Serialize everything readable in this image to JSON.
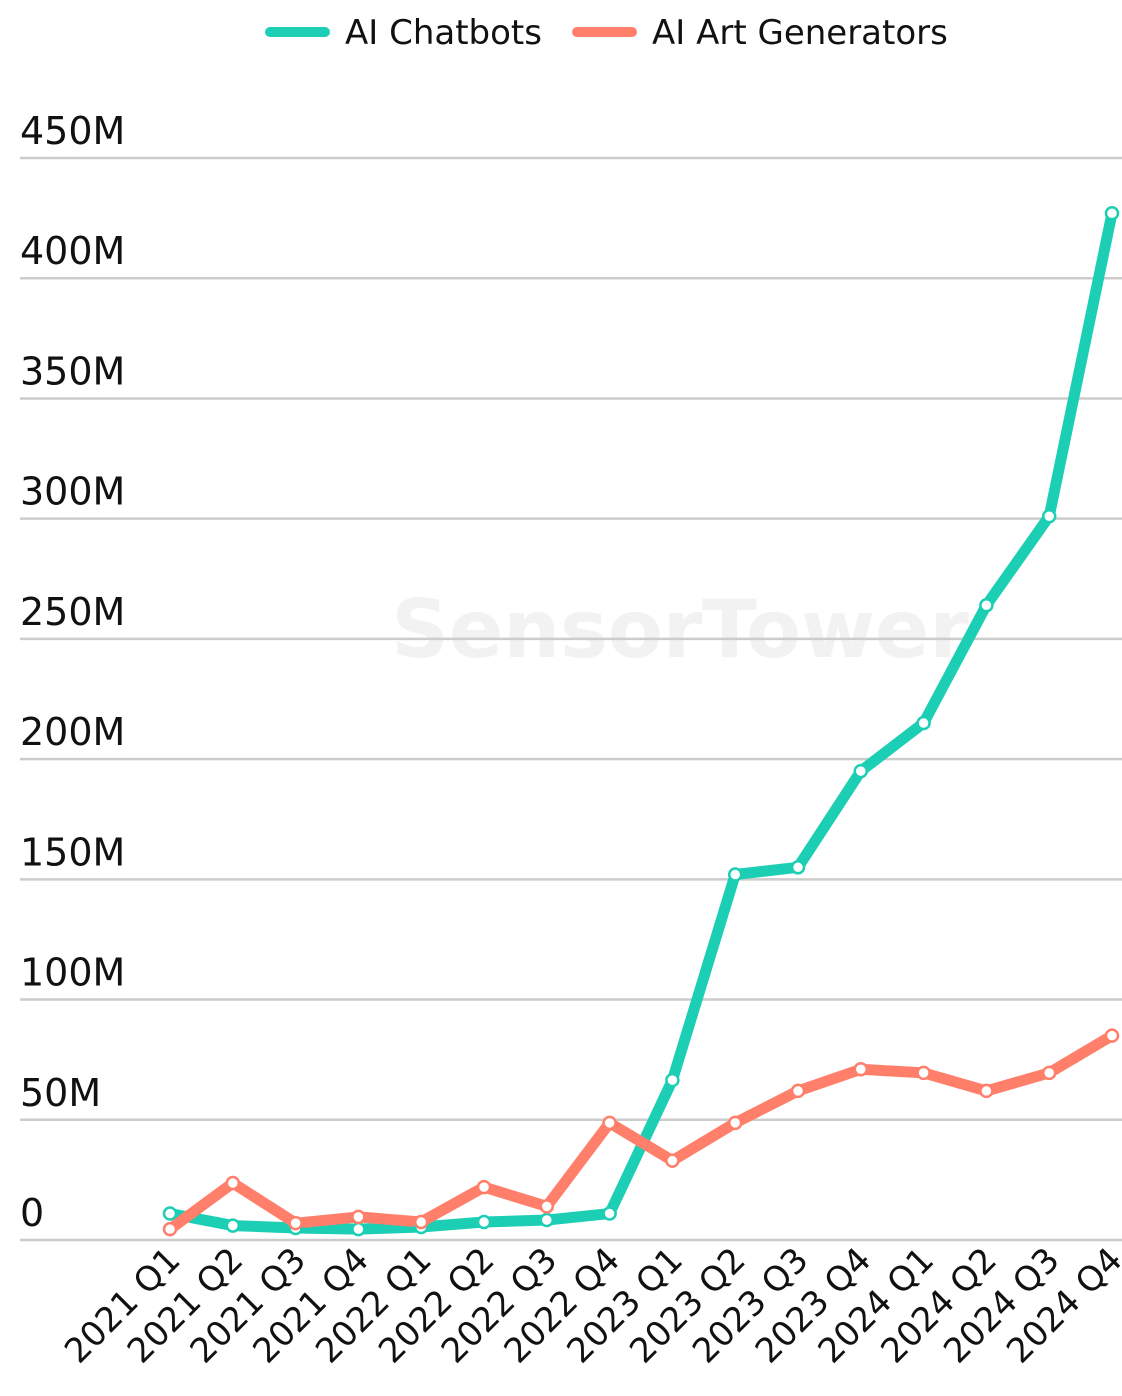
{
  "chart_data": {
    "type": "line",
    "watermark": "SensorTower",
    "categories": [
      "2021 Q1",
      "2021 Q2",
      "2021 Q3",
      "2021 Q4",
      "2022 Q1",
      "2022 Q2",
      "2022 Q3",
      "2022 Q4",
      "2023 Q1",
      "2023 Q2",
      "2023 Q3",
      "2023 Q4",
      "2024 Q1",
      "2024 Q2",
      "2024 Q3",
      "2024 Q4"
    ],
    "series": [
      {
        "name": "AI Chatbots",
        "color": "#1ccfb4",
        "values": [
          11000000,
          6000000,
          5000000,
          4500000,
          5400000,
          7500000,
          8300000,
          11000000,
          66500000,
          152000000,
          155000000,
          195000000,
          215000000,
          264000000,
          301000000,
          427000000
        ]
      },
      {
        "name": "AI Art Generators",
        "color": "#ff7f6b",
        "values": [
          4500000,
          23700000,
          7000000,
          9600000,
          7500000,
          22000000,
          14000000,
          48700000,
          33000000,
          48700000,
          62000000,
          71000000,
          69500000,
          62000000,
          69500000,
          85000000
        ]
      }
    ],
    "ylim": [
      0,
      450000000
    ],
    "yticks": [
      0,
      {
        "value": 50000000,
        "label": "50M"
      },
      {
        "value": 100000000,
        "label": "100M"
      },
      {
        "value": 150000000,
        "label": "150M"
      },
      {
        "value": 200000000,
        "label": "200M"
      },
      {
        "value": 250000000,
        "label": "250M"
      },
      {
        "value": 300000000,
        "label": "300M"
      },
      {
        "value": 350000000,
        "label": "350M"
      },
      {
        "value": 400000000,
        "label": "400M"
      },
      {
        "value": 450000000,
        "label": "450M"
      }
    ],
    "grid": true,
    "legend": "top"
  }
}
